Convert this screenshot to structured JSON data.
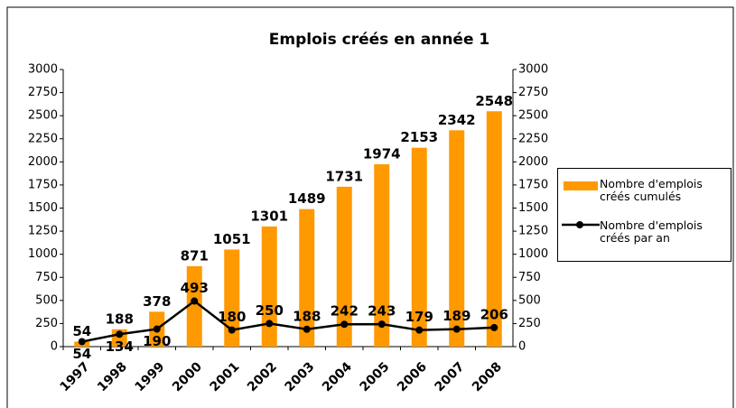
{
  "chart_data": {
    "type": "combo",
    "title": "Emplois créés en année 1",
    "categories": [
      "1997",
      "1998",
      "1999",
      "2000",
      "2001",
      "2002",
      "2003",
      "2004",
      "2005",
      "2006",
      "2007",
      "2008"
    ],
    "series": [
      {
        "name": "Nombre d'emplois créés cumulés",
        "type": "bar",
        "color": "#ff9900",
        "values": [
          54,
          188,
          378,
          871,
          1051,
          1301,
          1489,
          1731,
          1974,
          2153,
          2342,
          2548
        ]
      },
      {
        "name": "Nombre d'emplois créés par an",
        "type": "line",
        "color": "#000000",
        "axis": "y2",
        "values": [
          54,
          134,
          190,
          493,
          180,
          250,
          188,
          242,
          243,
          179,
          189,
          206
        ]
      }
    ],
    "ylim": [
      0,
      3000
    ],
    "yticks": [
      0,
      250,
      500,
      750,
      1000,
      1250,
      1500,
      1750,
      2000,
      2250,
      2500,
      2750,
      3000
    ],
    "y2lim": [
      0,
      3000
    ],
    "y2ticks": [
      0,
      250,
      500,
      750,
      1000,
      1250,
      1500,
      1750,
      2000,
      2250,
      2500,
      2750,
      3000
    ],
    "legend": "right"
  }
}
